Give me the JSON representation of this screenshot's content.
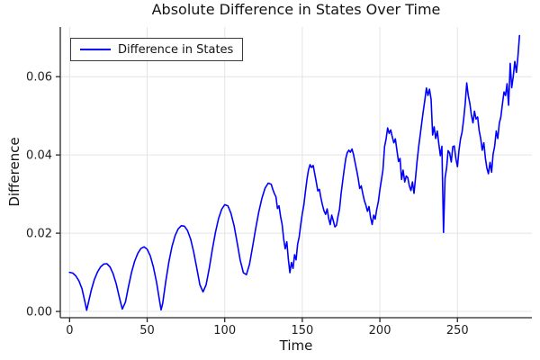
{
  "chart_data": {
    "type": "line",
    "title": "Absolute Difference in States Over Time",
    "xlabel": "Time",
    "ylabel": "Difference",
    "xlim": [
      -6,
      298
    ],
    "ylim": [
      -0.0016,
      0.0727
    ],
    "grid": true,
    "legend_position": "top-left",
    "xticks": {
      "values": [
        0,
        50,
        100,
        150,
        200,
        250
      ],
      "labels": [
        "0",
        "50",
        "100",
        "150",
        "200",
        "250"
      ]
    },
    "yticks": {
      "values": [
        0.0,
        0.02,
        0.04,
        0.06
      ],
      "labels": [
        "0.00",
        "0.02",
        "0.04",
        "0.06"
      ]
    },
    "colors": {
      "line": "#0000ff",
      "grid": "#e4e4e4",
      "axis": "#26262a",
      "text": "#1f1f1f"
    },
    "series": [
      {
        "name": "Difference in States",
        "color": "#0000ff",
        "points": [
          [
            0,
            0.01
          ],
          [
            2,
            0.0098
          ],
          [
            4,
            0.0091
          ],
          [
            6,
            0.0078
          ],
          [
            8,
            0.0058
          ],
          [
            10,
            0.0022
          ],
          [
            11,
            0.0003
          ],
          [
            12,
            0.002
          ],
          [
            14,
            0.0055
          ],
          [
            16,
            0.0082
          ],
          [
            18,
            0.0101
          ],
          [
            20,
            0.0114
          ],
          [
            22,
            0.0121
          ],
          [
            24,
            0.0122
          ],
          [
            26,
            0.0114
          ],
          [
            28,
            0.0097
          ],
          [
            30,
            0.0071
          ],
          [
            32,
            0.0037
          ],
          [
            34,
            0.0006
          ],
          [
            36,
            0.0024
          ],
          [
            38,
            0.0064
          ],
          [
            40,
            0.0101
          ],
          [
            42,
            0.0129
          ],
          [
            44,
            0.0149
          ],
          [
            46,
            0.0161
          ],
          [
            48,
            0.0165
          ],
          [
            50,
            0.0159
          ],
          [
            52,
            0.0142
          ],
          [
            54,
            0.0114
          ],
          [
            56,
            0.0075
          ],
          [
            58,
            0.0027
          ],
          [
            59,
            0.0004
          ],
          [
            60,
            0.0021
          ],
          [
            62,
            0.0077
          ],
          [
            64,
            0.0127
          ],
          [
            66,
            0.0166
          ],
          [
            68,
            0.0194
          ],
          [
            70,
            0.0211
          ],
          [
            72,
            0.0219
          ],
          [
            74,
            0.0218
          ],
          [
            76,
            0.0207
          ],
          [
            78,
            0.0185
          ],
          [
            80,
            0.0152
          ],
          [
            82,
            0.011
          ],
          [
            84,
            0.0068
          ],
          [
            86,
            0.005
          ],
          [
            88,
            0.0068
          ],
          [
            90,
            0.011
          ],
          [
            92,
            0.0158
          ],
          [
            94,
            0.0202
          ],
          [
            96,
            0.0237
          ],
          [
            98,
            0.0261
          ],
          [
            100,
            0.0273
          ],
          [
            102,
            0.027
          ],
          [
            104,
            0.0251
          ],
          [
            106,
            0.0219
          ],
          [
            108,
            0.0176
          ],
          [
            110,
            0.0131
          ],
          [
            112,
            0.0099
          ],
          [
            114,
            0.0094
          ],
          [
            116,
            0.0121
          ],
          [
            118,
            0.0166
          ],
          [
            120,
            0.0213
          ],
          [
            122,
            0.0255
          ],
          [
            124,
            0.029
          ],
          [
            126,
            0.0315
          ],
          [
            128,
            0.0328
          ],
          [
            130,
            0.0325
          ],
          [
            131,
            0.0312
          ],
          [
            132,
            0.0301
          ],
          [
            133,
            0.0293
          ],
          [
            134,
            0.0263
          ],
          [
            135,
            0.027
          ],
          [
            136,
            0.0242
          ],
          [
            137,
            0.0222
          ],
          [
            138,
            0.0185
          ],
          [
            139,
            0.016
          ],
          [
            140,
            0.0178
          ],
          [
            141,
            0.0133
          ],
          [
            142,
            0.0099
          ],
          [
            143,
            0.0125
          ],
          [
            144,
            0.011
          ],
          [
            145,
            0.0145
          ],
          [
            146,
            0.0132
          ],
          [
            147,
            0.0172
          ],
          [
            148,
            0.019
          ],
          [
            149,
            0.0223
          ],
          [
            150,
            0.025
          ],
          [
            151,
            0.0272
          ],
          [
            152,
            0.0305
          ],
          [
            153,
            0.0338
          ],
          [
            154,
            0.0362
          ],
          [
            155,
            0.0375
          ],
          [
            156,
            0.0368
          ],
          [
            157,
            0.0373
          ],
          [
            158,
            0.0352
          ],
          [
            159,
            0.0331
          ],
          [
            160,
            0.0308
          ],
          [
            161,
            0.0312
          ],
          [
            162,
            0.029
          ],
          [
            163,
            0.0272
          ],
          [
            164,
            0.0257
          ],
          [
            165,
            0.0248
          ],
          [
            166,
            0.0262
          ],
          [
            167,
            0.0238
          ],
          [
            168,
            0.0222
          ],
          [
            169,
            0.0246
          ],
          [
            170,
            0.0231
          ],
          [
            171,
            0.0216
          ],
          [
            172,
            0.022
          ],
          [
            173,
            0.0242
          ],
          [
            174,
            0.0262
          ],
          [
            175,
            0.0301
          ],
          [
            176,
            0.0332
          ],
          [
            177,
            0.0362
          ],
          [
            178,
            0.0391
          ],
          [
            179,
            0.0406
          ],
          [
            180,
            0.0412
          ],
          [
            181,
            0.0407
          ],
          [
            182,
            0.0415
          ],
          [
            183,
            0.0401
          ],
          [
            184,
            0.0381
          ],
          [
            185,
            0.0362
          ],
          [
            186,
            0.0341
          ],
          [
            187,
            0.0314
          ],
          [
            188,
            0.0321
          ],
          [
            189,
            0.0301
          ],
          [
            190,
            0.0284
          ],
          [
            191,
            0.0271
          ],
          [
            192,
            0.0256
          ],
          [
            193,
            0.0268
          ],
          [
            194,
            0.0241
          ],
          [
            195,
            0.0222
          ],
          [
            196,
            0.0246
          ],
          [
            197,
            0.0236
          ],
          [
            198,
            0.0261
          ],
          [
            199,
            0.0281
          ],
          [
            200,
            0.0311
          ],
          [
            201,
            0.0336
          ],
          [
            202,
            0.0362
          ],
          [
            203,
            0.0421
          ],
          [
            204,
            0.0441
          ],
          [
            205,
            0.0469
          ],
          [
            206,
            0.0455
          ],
          [
            207,
            0.0464
          ],
          [
            208,
            0.0446
          ],
          [
            209,
            0.0431
          ],
          [
            210,
            0.0441
          ],
          [
            211,
            0.0412
          ],
          [
            212,
            0.0383
          ],
          [
            213,
            0.0391
          ],
          [
            214,
            0.0337
          ],
          [
            215,
            0.0361
          ],
          [
            216,
            0.0331
          ],
          [
            217,
            0.0346
          ],
          [
            218,
            0.0342
          ],
          [
            219,
            0.0321
          ],
          [
            220,
            0.0309
          ],
          [
            221,
            0.0331
          ],
          [
            222,
            0.0302
          ],
          [
            223,
            0.0341
          ],
          [
            224,
            0.0383
          ],
          [
            225,
            0.0421
          ],
          [
            226,
            0.0451
          ],
          [
            227,
            0.0482
          ],
          [
            228,
            0.0512
          ],
          [
            229,
            0.0541
          ],
          [
            230,
            0.0571
          ],
          [
            231,
            0.0552
          ],
          [
            232,
            0.0568
          ],
          [
            233,
            0.0542
          ],
          [
            234,
            0.0451
          ],
          [
            235,
            0.0472
          ],
          [
            236,
            0.0442
          ],
          [
            237,
            0.0461
          ],
          [
            238,
            0.0428
          ],
          [
            239,
            0.0398
          ],
          [
            240,
            0.0422
          ],
          [
            241,
            0.0202
          ],
          [
            242,
            0.0341
          ],
          [
            243,
            0.0366
          ],
          [
            244,
            0.0411
          ],
          [
            245,
            0.0405
          ],
          [
            246,
            0.0382
          ],
          [
            247,
            0.0421
          ],
          [
            248,
            0.0423
          ],
          [
            249,
            0.0391
          ],
          [
            250,
            0.037
          ],
          [
            251,
            0.0412
          ],
          [
            252,
            0.0441
          ],
          [
            253,
            0.0458
          ],
          [
            254,
            0.0492
          ],
          [
            255,
            0.0531
          ],
          [
            256,
            0.0584
          ],
          [
            257,
            0.0552
          ],
          [
            258,
            0.0531
          ],
          [
            259,
            0.0501
          ],
          [
            260,
            0.0482
          ],
          [
            261,
            0.0512
          ],
          [
            262,
            0.0492
          ],
          [
            263,
            0.0497
          ],
          [
            264,
            0.0462
          ],
          [
            265,
            0.0442
          ],
          [
            266,
            0.0412
          ],
          [
            267,
            0.0431
          ],
          [
            268,
            0.0392
          ],
          [
            269,
            0.0366
          ],
          [
            270,
            0.0352
          ],
          [
            271,
            0.0381
          ],
          [
            272,
            0.0356
          ],
          [
            273,
            0.0402
          ],
          [
            274,
            0.0422
          ],
          [
            275,
            0.0461
          ],
          [
            276,
            0.0442
          ],
          [
            277,
            0.0481
          ],
          [
            278,
            0.0497
          ],
          [
            279,
            0.0531
          ],
          [
            280,
            0.0561
          ],
          [
            281,
            0.0552
          ],
          [
            282,
            0.0582
          ],
          [
            283,
            0.0527
          ],
          [
            284,
            0.0634
          ],
          [
            285,
            0.0572
          ],
          [
            286,
            0.0601
          ],
          [
            287,
            0.0639
          ],
          [
            288,
            0.0611
          ],
          [
            289,
            0.0652
          ],
          [
            290,
            0.0705
          ]
        ]
      }
    ]
  }
}
